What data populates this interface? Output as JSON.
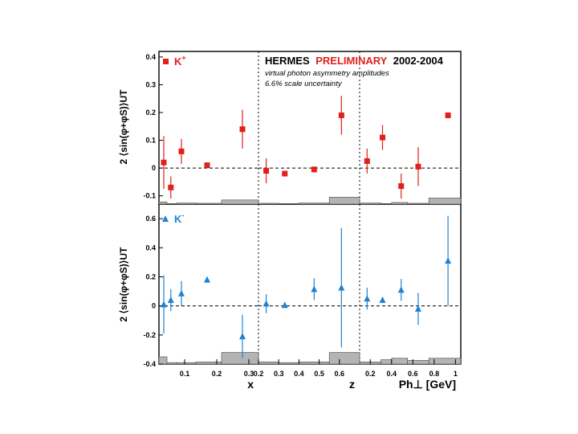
{
  "header": {
    "experiment": "HERMES",
    "preliminary": "PRELIMINARY",
    "years": "2002-2004",
    "note1": "virtual photon asymmetry amplitudes",
    "note2": "6.6% scale uncertainty"
  },
  "colors": {
    "kplus": "#e0201b",
    "kminus": "#1e82d2",
    "systematic": "#b4b4b4"
  },
  "legend": {
    "kplus_base": "K",
    "kplus_sup": "+",
    "kminus_base": "K",
    "kminus_sup": "-"
  },
  "ylabel": {
    "top": "2 ⟨sin(φ+φS)⟩UT",
    "bottom": "2 ⟨sin(φ+φS)⟩UT"
  },
  "chart_data": [
    {
      "type": "scatter",
      "name": "K+ vs x",
      "ylim": [
        -0.13,
        0.42
      ],
      "yticks": [
        -0.1,
        0,
        0.1,
        0.2,
        0.3,
        0.4
      ],
      "ytick_labels": [
        "-0.1",
        "0",
        "0.1",
        "0.2",
        "0.3",
        "0.4"
      ],
      "xlim": [
        0.02,
        0.33
      ],
      "series": [
        {
          "name": "K+",
          "marker": "square",
          "points": [
            {
              "x": 0.035,
              "y": 0.02,
              "err": 0.095
            },
            {
              "x": 0.057,
              "y": -0.07,
              "err": 0.04
            },
            {
              "x": 0.09,
              "y": 0.06,
              "err": 0.045
            },
            {
              "x": 0.17,
              "y": 0.01,
              "err": 0.01
            },
            {
              "x": 0.28,
              "y": 0.14,
              "err": 0.07
            }
          ]
        }
      ],
      "systematic_bands": [
        {
          "x0": 0.02,
          "x1": 0.045,
          "top": -0.122
        },
        {
          "x0": 0.045,
          "x1": 0.075,
          "top": -0.128
        },
        {
          "x0": 0.075,
          "x1": 0.135,
          "top": -0.126
        },
        {
          "x0": 0.135,
          "x1": 0.215,
          "top": -0.127
        },
        {
          "x0": 0.215,
          "x1": 0.33,
          "top": -0.115
        }
      ]
    },
    {
      "type": "scatter",
      "name": "K+ vs z",
      "ylim": [
        -0.13,
        0.42
      ],
      "xlim": [
        0.2,
        0.7
      ],
      "series": [
        {
          "name": "K+",
          "marker": "square",
          "points": [
            {
              "x": 0.238,
              "y": -0.01,
              "err": 0.045
            },
            {
              "x": 0.33,
              "y": -0.02,
              "err": 0.01
            },
            {
              "x": 0.475,
              "y": -0.005,
              "err": 0.01
            },
            {
              "x": 0.61,
              "y": 0.19,
              "err": 0.07
            }
          ]
        }
      ],
      "systematic_bands": [
        {
          "x0": 0.2,
          "x1": 0.3,
          "top": -0.127
        },
        {
          "x0": 0.3,
          "x1": 0.4,
          "top": -0.129
        },
        {
          "x0": 0.4,
          "x1": 0.55,
          "top": -0.126
        },
        {
          "x0": 0.55,
          "x1": 0.7,
          "top": -0.105
        }
      ]
    },
    {
      "type": "scatter",
      "name": "K+ vs Ph⊥",
      "ylim": [
        -0.13,
        0.42
      ],
      "xlim": [
        0.1,
        1.05
      ],
      "series": [
        {
          "name": "K+",
          "marker": "square",
          "points": [
            {
              "x": 0.17,
              "y": 0.025,
              "err": 0.045
            },
            {
              "x": 0.315,
              "y": 0.11,
              "err": 0.045
            },
            {
              "x": 0.49,
              "y": -0.065,
              "err": 0.045
            },
            {
              "x": 0.65,
              "y": 0.005,
              "err": 0.07
            },
            {
              "x": 0.93,
              "y": 0.19,
              "err": 0.0
            }
          ]
        }
      ],
      "systematic_bands": [
        {
          "x0": 0.1,
          "x1": 0.3,
          "top": -0.126
        },
        {
          "x0": 0.3,
          "x1": 0.4,
          "top": -0.128
        },
        {
          "x0": 0.4,
          "x1": 0.55,
          "top": -0.124
        },
        {
          "x0": 0.55,
          "x1": 0.75,
          "top": -0.127
        },
        {
          "x0": 0.75,
          "x1": 1.05,
          "top": -0.108
        }
      ]
    },
    {
      "type": "scatter",
      "name": "K- vs x",
      "ylim": [
        -0.4,
        0.7
      ],
      "yticks": [
        -0.4,
        -0.2,
        0,
        0.2,
        0.4,
        0.6
      ],
      "ytick_labels": [
        "-0.4",
        "-0.2",
        "0",
        "0.2",
        "0.4",
        "0.6"
      ],
      "xlim": [
        0.02,
        0.33
      ],
      "xticks": [
        0.1,
        0.2,
        0.3
      ],
      "xtick_labels": [
        "0.1",
        "0.2",
        "0.3"
      ],
      "xlabel": "x",
      "series": [
        {
          "name": "K-",
          "marker": "triangle",
          "points": [
            {
              "x": 0.035,
              "y": 0.01,
              "err": 0.2
            },
            {
              "x": 0.057,
              "y": 0.04,
              "err": 0.075
            },
            {
              "x": 0.09,
              "y": 0.085,
              "err": 0.085
            },
            {
              "x": 0.17,
              "y": 0.18,
              "err": 0.015
            },
            {
              "x": 0.28,
              "y": -0.21,
              "err": 0.15
            }
          ]
        }
      ],
      "systematic_bands": [
        {
          "x0": 0.02,
          "x1": 0.045,
          "top": -0.35
        },
        {
          "x0": 0.045,
          "x1": 0.075,
          "top": -0.39
        },
        {
          "x0": 0.075,
          "x1": 0.135,
          "top": -0.39
        },
        {
          "x0": 0.135,
          "x1": 0.215,
          "top": -0.385
        },
        {
          "x0": 0.215,
          "x1": 0.33,
          "top": -0.32
        }
      ]
    },
    {
      "type": "scatter",
      "name": "K- vs z",
      "ylim": [
        -0.4,
        0.7
      ],
      "xlim": [
        0.2,
        0.7
      ],
      "xticks": [
        0.2,
        0.3,
        0.4,
        0.5,
        0.6
      ],
      "xtick_labels": [
        "0.2",
        "0.3",
        "0.4",
        "0.5",
        "0.6"
      ],
      "xlabel": "z",
      "series": [
        {
          "name": "K-",
          "marker": "triangle",
          "points": [
            {
              "x": 0.238,
              "y": 0.015,
              "err": 0.065
            },
            {
              "x": 0.33,
              "y": 0.005,
              "err": 0.01
            },
            {
              "x": 0.475,
              "y": 0.115,
              "err": 0.075
            },
            {
              "x": 0.61,
              "y": 0.125,
              "err": 0.41
            }
          ]
        }
      ],
      "systematic_bands": [
        {
          "x0": 0.2,
          "x1": 0.3,
          "top": -0.385
        },
        {
          "x0": 0.3,
          "x1": 0.4,
          "top": -0.39
        },
        {
          "x0": 0.4,
          "x1": 0.55,
          "top": -0.385
        },
        {
          "x0": 0.55,
          "x1": 0.7,
          "top": -0.32
        }
      ]
    },
    {
      "type": "scatter",
      "name": "K- vs Ph⊥",
      "ylim": [
        -0.4,
        0.7
      ],
      "xlim": [
        0.1,
        1.05
      ],
      "xticks": [
        0.2,
        0.4,
        0.6,
        0.8,
        1.0
      ],
      "xtick_labels": [
        "0.2",
        "0.4",
        "0.6",
        "0.8",
        "1"
      ],
      "xlabel": "Ph⊥ [GeV]",
      "series": [
        {
          "name": "K-",
          "marker": "triangle",
          "points": [
            {
              "x": 0.17,
              "y": 0.05,
              "err": 0.075
            },
            {
              "x": 0.315,
              "y": 0.04,
              "err": 0.01
            },
            {
              "x": 0.49,
              "y": 0.11,
              "err": 0.075
            },
            {
              "x": 0.65,
              "y": -0.02,
              "err": 0.11
            },
            {
              "x": 0.93,
              "y": 0.31,
              "err": 0.31
            }
          ]
        }
      ],
      "systematic_bands": [
        {
          "x0": 0.1,
          "x1": 0.3,
          "top": -0.385
        },
        {
          "x0": 0.3,
          "x1": 0.4,
          "top": -0.37
        },
        {
          "x0": 0.4,
          "x1": 0.55,
          "top": -0.36
        },
        {
          "x0": 0.55,
          "x1": 0.75,
          "top": -0.375
        },
        {
          "x0": 0.75,
          "x1": 1.05,
          "top": -0.36
        }
      ]
    }
  ]
}
